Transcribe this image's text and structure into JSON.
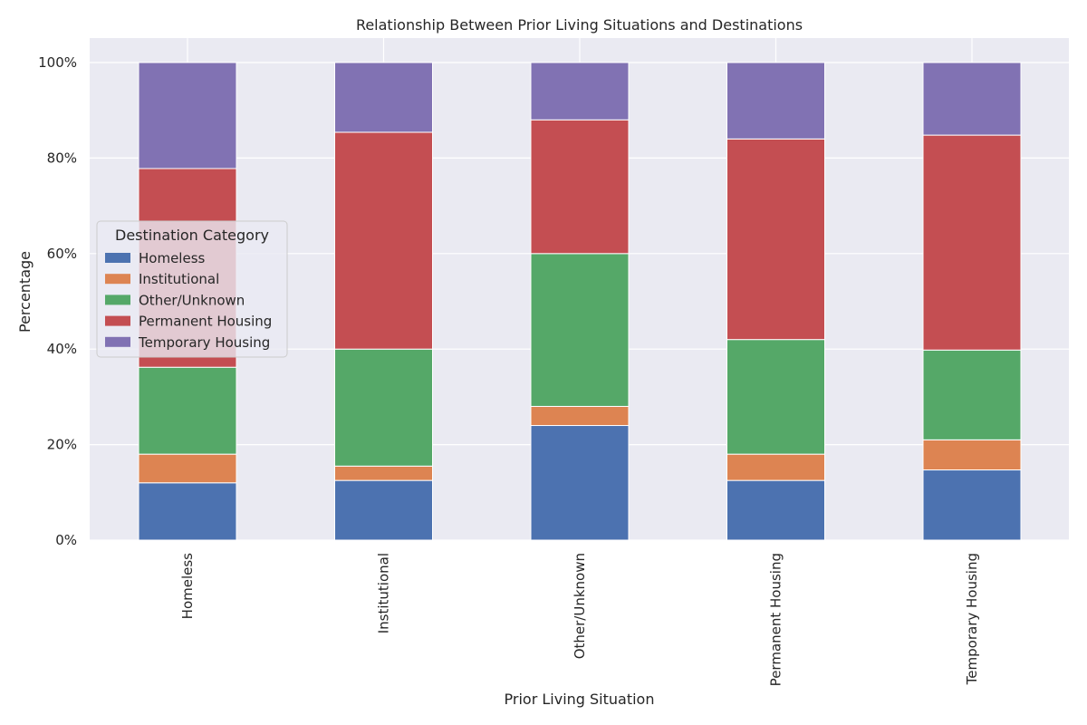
{
  "chart_data": {
    "type": "bar",
    "stacked": true,
    "title": "Relationship Between Prior Living Situations and Destinations",
    "xlabel": "Prior Living Situation",
    "ylabel": "Percentage",
    "categories": [
      "Homeless",
      "Institutional",
      "Other/Unknown",
      "Permanent Housing",
      "Temporary Housing"
    ],
    "y_ticks": [
      "0%",
      "20%",
      "40%",
      "60%",
      "80%",
      "100%"
    ],
    "ylim": [
      0,
      100
    ],
    "grid": true,
    "legend_title": "Destination Category",
    "legend_position": "center-left",
    "series": [
      {
        "name": "Homeless",
        "color": "#4c72b0",
        "values": [
          12.0,
          12.5,
          24.0,
          12.5,
          14.7
        ]
      },
      {
        "name": "Institutional",
        "color": "#dd8452",
        "values": [
          6.0,
          3.0,
          4.0,
          5.5,
          6.3
        ]
      },
      {
        "name": "Other/Unknown",
        "color": "#55a868",
        "values": [
          18.2,
          24.5,
          32.0,
          24.0,
          18.8
        ]
      },
      {
        "name": "Permanent Housing",
        "color": "#c44e52",
        "values": [
          41.6,
          45.4,
          28.0,
          42.0,
          45.0
        ]
      },
      {
        "name": "Temporary Housing",
        "color": "#8172b3",
        "values": [
          22.2,
          14.6,
          12.0,
          16.0,
          15.2
        ]
      }
    ]
  }
}
